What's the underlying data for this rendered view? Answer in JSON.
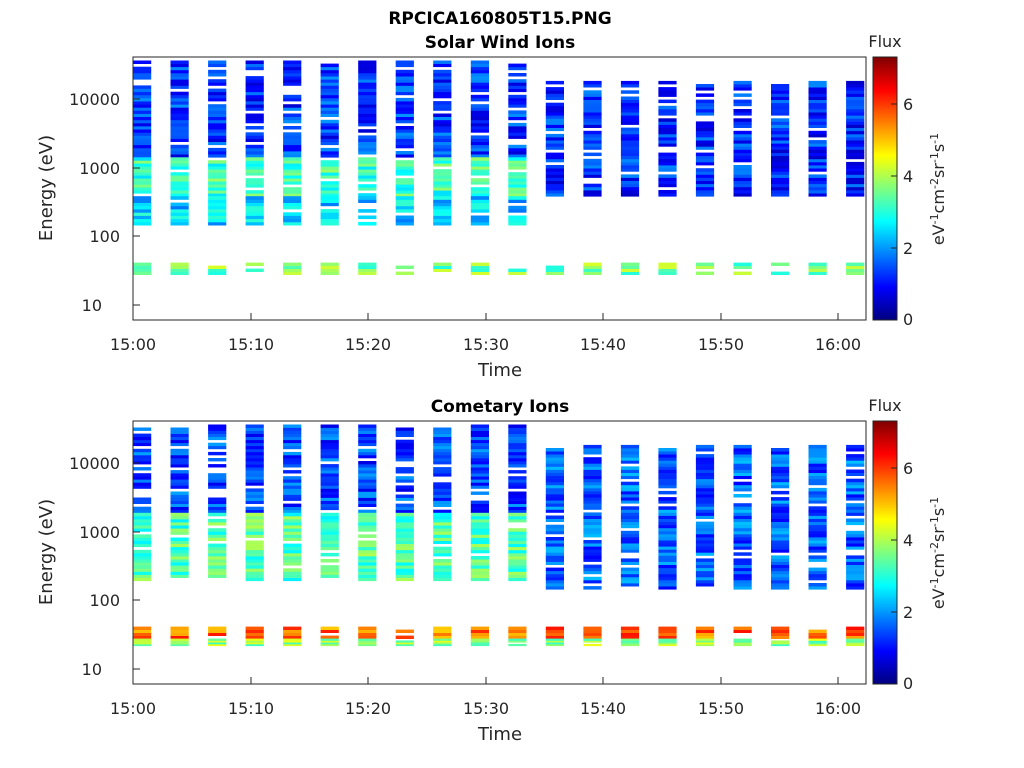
{
  "figure": {
    "title": "RPCICA160805T15.PNG"
  },
  "chart_data": [
    {
      "type": "heatmap",
      "title": "Solar Wind Ions",
      "xlabel": "Time",
      "ylabel": "Energy (eV)",
      "x_ticks": [
        "15:00",
        "15:10",
        "15:20",
        "15:30",
        "15:40",
        "15:50",
        "16:00"
      ],
      "x_range": [
        "15:00",
        "16:02"
      ],
      "y_ticks": [
        10,
        100,
        1000,
        10000
      ],
      "y_scale": "log",
      "y_range": [
        6,
        45000
      ],
      "colorbar": {
        "title": "Flux",
        "ticks": [
          0,
          2,
          4,
          6
        ],
        "range": [
          0,
          7.3
        ],
        "colormap": "jet"
      },
      "cycle_start_minutes": [
        0,
        3.2,
        6.4,
        9.6,
        12.8,
        16,
        19.2,
        22.4,
        25.6,
        28.8,
        32,
        35.2,
        38.4,
        41.6,
        44.8,
        48,
        51.2,
        54.4,
        57.6,
        60.8
      ],
      "bands": [
        {
          "e_low": 1500,
          "e_high": 40000,
          "flux": 1.3,
          "minute_from": 0,
          "minute_to": 33
        },
        {
          "e_low": 400,
          "e_high": 1500,
          "flux": 3.2,
          "minute_from": 0,
          "minute_to": 33
        },
        {
          "e_low": 150,
          "e_high": 400,
          "flux": 2.4,
          "minute_from": 0,
          "minute_to": 33
        },
        {
          "e_low": 28,
          "e_high": 42,
          "flux": 3.6,
          "minute_from": 0,
          "minute_to": 62
        },
        {
          "e_low": 400,
          "e_high": 20000,
          "flux": 1.2,
          "minute_from": 33,
          "minute_to": 62
        }
      ]
    },
    {
      "type": "heatmap",
      "title": "Cometary Ions",
      "xlabel": "Time",
      "ylabel": "Energy (eV)",
      "x_ticks": [
        "15:00",
        "15:10",
        "15:20",
        "15:30",
        "15:40",
        "15:50",
        "16:00"
      ],
      "x_range": [
        "15:00",
        "16:02"
      ],
      "y_ticks": [
        10,
        100,
        1000,
        10000
      ],
      "y_scale": "log",
      "y_range": [
        6,
        45000
      ],
      "colorbar": {
        "title": "Flux",
        "ticks": [
          0,
          2,
          4,
          6
        ],
        "range": [
          0,
          7.3
        ],
        "colormap": "jet"
      },
      "cycle_start_minutes": [
        0,
        3.2,
        6.4,
        9.6,
        12.8,
        16,
        19.2,
        22.4,
        25.6,
        28.8,
        32,
        35.2,
        38.4,
        41.6,
        44.8,
        48,
        51.2,
        54.4,
        57.6,
        60.8
      ],
      "bands": [
        {
          "e_low": 2000,
          "e_high": 40000,
          "flux": 1.4,
          "minute_from": 0,
          "minute_to": 33
        },
        {
          "e_low": 200,
          "e_high": 2000,
          "flux": 3.3,
          "minute_from": 0,
          "minute_to": 33
        },
        {
          "e_low": 28,
          "e_high": 42,
          "flux": 5.6,
          "minute_from": 0,
          "minute_to": 62
        },
        {
          "e_low": 22,
          "e_high": 28,
          "flux": 3.8,
          "minute_from": 0,
          "minute_to": 62
        },
        {
          "e_low": 150,
          "e_high": 20000,
          "flux": 1.6,
          "minute_from": 33,
          "minute_to": 62
        }
      ]
    }
  ]
}
